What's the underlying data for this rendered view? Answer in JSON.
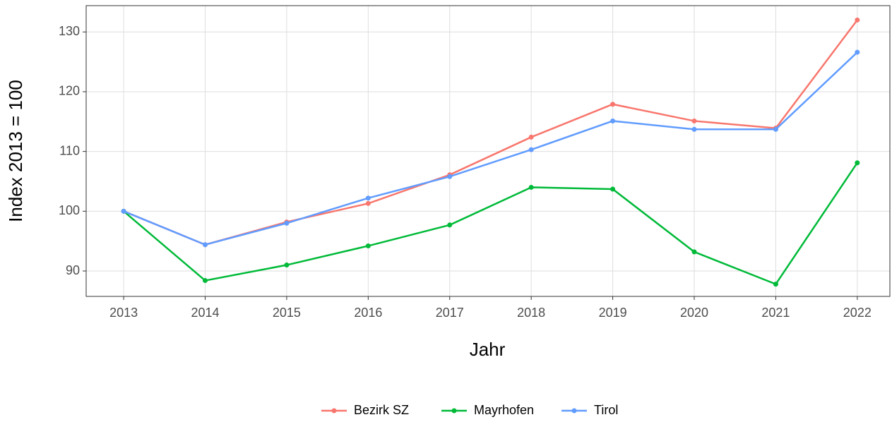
{
  "chart_data": {
    "type": "line",
    "xlabel": "Jahr",
    "ylabel": "Index  2013  = 100",
    "x": [
      2013,
      2014,
      2015,
      2016,
      2017,
      2018,
      2019,
      2020,
      2021,
      2022
    ],
    "series": [
      {
        "name": "Bezirk SZ",
        "color": "#F8766D",
        "values": [
          100,
          94.4,
          98.2,
          101.3,
          106.1,
          112.4,
          117.9,
          115.1,
          113.9,
          132.0
        ]
      },
      {
        "name": "Mayrhofen",
        "color": "#00BA38",
        "values": [
          100,
          88.4,
          91.0,
          94.2,
          97.7,
          104.0,
          103.7,
          93.2,
          87.8,
          108.1
        ]
      },
      {
        "name": "Tirol",
        "color": "#619CFF",
        "values": [
          100,
          94.4,
          98.0,
          102.2,
          105.8,
          110.3,
          115.1,
          113.7,
          113.7,
          126.6
        ]
      }
    ],
    "xlim": [
      2012.54,
      2022.4
    ],
    "xticks": [
      2013,
      2014,
      2015,
      2016,
      2017,
      2018,
      2019,
      2020,
      2021,
      2022
    ],
    "ylim": [
      85.75,
      134.4
    ],
    "yticks": [
      90,
      100,
      110,
      120,
      130
    ],
    "grid": true,
    "legend": "bottom"
  }
}
